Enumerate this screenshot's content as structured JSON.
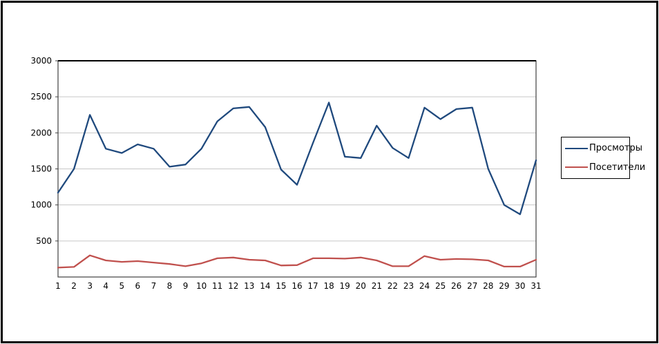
{
  "chart_data": {
    "type": "line",
    "title": "",
    "xlabel": "",
    "ylabel": "",
    "categories": [
      "1",
      "2",
      "3",
      "4",
      "5",
      "6",
      "7",
      "8",
      "9",
      "10",
      "11",
      "12",
      "13",
      "14",
      "15",
      "16",
      "17",
      "18",
      "19",
      "20",
      "21",
      "22",
      "23",
      "24",
      "25",
      "26",
      "27",
      "28",
      "29",
      "30",
      "31"
    ],
    "series": [
      {
        "name": "Просмотры",
        "color": "#1F497D",
        "values": [
          1170,
          1500,
          2250,
          1780,
          1720,
          1840,
          1780,
          1530,
          1560,
          1780,
          2160,
          2340,
          2360,
          2080,
          1490,
          1280,
          1860,
          2420,
          1670,
          1650,
          2100,
          1790,
          1650,
          2350,
          2190,
          2330,
          2350,
          1500,
          1000,
          870,
          1620
        ]
      },
      {
        "name": "Посетители",
        "color": "#C0504D",
        "values": [
          130,
          140,
          300,
          230,
          210,
          220,
          200,
          180,
          150,
          190,
          260,
          270,
          240,
          230,
          160,
          165,
          260,
          260,
          255,
          270,
          230,
          150,
          150,
          290,
          240,
          250,
          245,
          230,
          145,
          145,
          240
        ]
      }
    ],
    "ylim": [
      0,
      3000
    ],
    "yticks": [
      "500",
      "1000",
      "1500",
      "2000",
      "2500",
      "3000"
    ],
    "grid": true,
    "gridline_color": "#C6C6C6",
    "axis_color": "#404040",
    "legend_position": "right"
  }
}
